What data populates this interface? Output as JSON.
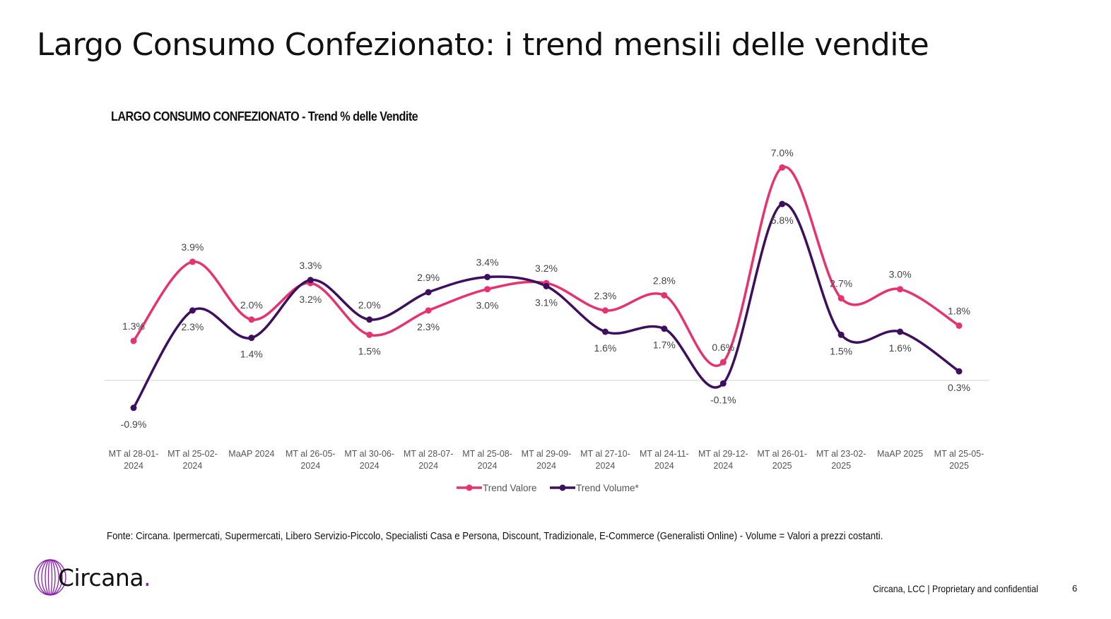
{
  "title": "Largo Consumo Confezionato: i trend mensili delle vendite",
  "chart_data": {
    "type": "line",
    "title": "LARGO CONSUMO CONFEZIONATO - Trend % delle Vendite",
    "categories": [
      [
        "MT al 28-01-",
        "2024"
      ],
      [
        "MT al 25-02-",
        "2024"
      ],
      [
        "MaAP 2024",
        ""
      ],
      [
        "MT al 26-05-",
        "2024"
      ],
      [
        "MT al 30-06-",
        "2024"
      ],
      [
        "MT al 28-07-",
        "2024"
      ],
      [
        "MT al 25-08-",
        "2024"
      ],
      [
        "MT al 29-09-",
        "2024"
      ],
      [
        "MT al 27-10-",
        "2024"
      ],
      [
        "MT al 24-11-",
        "2024"
      ],
      [
        "MT al 29-12-",
        "2024"
      ],
      [
        "MT al 26-01-",
        "2025"
      ],
      [
        "MT al 23-02-",
        "2025"
      ],
      [
        "MaAP 2025",
        ""
      ],
      [
        "MT al 25-05-",
        "2025"
      ]
    ],
    "series": [
      {
        "name": "Trend Valore",
        "color": "#e6336f",
        "values": [
          1.3,
          3.9,
          2.0,
          3.2,
          1.5,
          2.3,
          3.0,
          3.2,
          2.3,
          2.8,
          0.6,
          7.0,
          2.7,
          3.0,
          1.8
        ],
        "labels": [
          "1.3%",
          "3.9%",
          "2.0%",
          "3.2%",
          "1.5%",
          "2.3%",
          "3.0%",
          "3.2%",
          "2.3%",
          "2.8%",
          "0.6%",
          "7.0%",
          "2.7%",
          "3.0%",
          "1.8%"
        ]
      },
      {
        "name": "Trend Volume*",
        "color": "#3d0f5e",
        "values": [
          -0.9,
          2.3,
          1.4,
          3.3,
          2.0,
          2.9,
          3.4,
          3.1,
          1.6,
          1.7,
          -0.1,
          5.8,
          1.5,
          1.6,
          0.3
        ],
        "labels": [
          "-0.9%",
          "2.3%",
          "1.4%",
          "3.3%",
          "2.0%",
          "2.9%",
          "3.4%",
          "3.1%",
          "1.6%",
          "1.7%",
          "-0.1%",
          "5.8%",
          "1.5%",
          "1.6%",
          "0.3%"
        ]
      }
    ],
    "xlabel": "",
    "ylabel": "",
    "ylim": [
      -1.5,
      7.5
    ],
    "grid": false,
    "legend": "bottom"
  },
  "source": "Fonte: Circana. Ipermercati, Supermercati, Libero Servizio-Piccolo, Specialisti Casa e Persona, Discount, Tradizionale, E-Commerce (Generalisti Online) - Volume = Valori a prezzi costanti.",
  "logo": {
    "text": "Circana",
    "dot": "."
  },
  "footer": {
    "text": "Circana, LCC |  Proprietary and confidential",
    "page": "6"
  }
}
